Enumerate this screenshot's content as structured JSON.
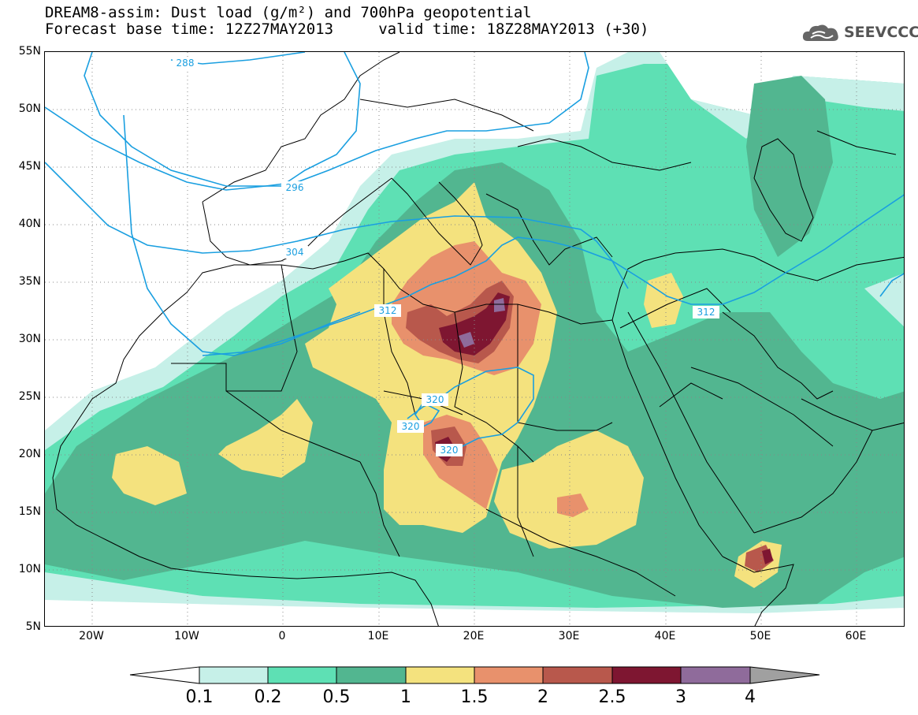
{
  "title_line1": "DREAM8-assim: Dust load (g/m²) and 700hPa geopotential",
  "title_line2": "Forecast base time: 12Z27MAY2013     valid time: 18Z28MAY2013 (+30)",
  "logo": {
    "text": "SEEVCCC",
    "icon": "cloud-icon"
  },
  "map": {
    "lat_labels": [
      "55N",
      "50N",
      "45N",
      "40N",
      "35N",
      "30N",
      "25N",
      "20N",
      "15N",
      "10N",
      "5N"
    ],
    "lon_labels": [
      "20W",
      "10W",
      "0",
      "10E",
      "20E",
      "30E",
      "40E",
      "50E",
      "60E"
    ],
    "contour_labels": [
      "288",
      "296",
      "304",
      "312",
      "312",
      "320",
      "320",
      "320"
    ]
  },
  "legend": {
    "levels": [
      "0.1",
      "0.2",
      "0.5",
      "1",
      "1.5",
      "2",
      "2.5",
      "3",
      "4"
    ],
    "colors": [
      "#ffffff",
      "#bfeee6",
      "#56e0b0",
      "#4fb48f",
      "#f2e27a",
      "#e8906a",
      "#b5564b",
      "#7d1530",
      "#8e6a9a",
      "#a0a0a0"
    ]
  },
  "colors": {
    "c01": "#c6f0e8",
    "c02": "#5ee0b4",
    "c05": "#52b690",
    "c1": "#f4e27e",
    "c15": "#e8916c",
    "c2": "#b8584c",
    "c25": "#7e1631",
    "c3": "#8f6b9b",
    "contour": "#1a9fe0",
    "border": "#000000"
  }
}
